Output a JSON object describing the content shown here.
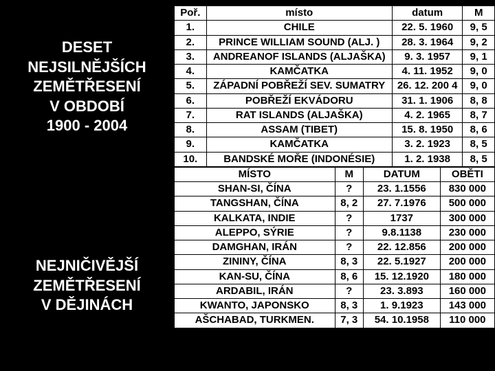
{
  "colors": {
    "background": "#000000",
    "text_on_black": "#ffffff",
    "table_bg": "#ffffff",
    "border": "#000000"
  },
  "leftTitles": {
    "first": {
      "l1": "DESET",
      "l2": "NEJSILNĚJŠÍCH",
      "l3": "ZEMĚTŘESENÍ",
      "l4": "V OBDOBÍ",
      "l5": "1900 - 2004"
    },
    "second": {
      "l1": "NEJNIČIVĚJŠÍ",
      "l2": "ZEMĚTŘESENÍ",
      "l3": "V DĚJINÁCH"
    }
  },
  "table1": {
    "headers": {
      "por": "Poř.",
      "misto": "místo",
      "datum": "datum",
      "m": "M"
    },
    "rows": [
      {
        "n": "1.",
        "place": "CHILE",
        "date": "22. 5. 1960",
        "m": "9, 5"
      },
      {
        "n": "2.",
        "place": "PRINCE WILLIAM SOUND (ALJ. )",
        "date": "28. 3. 1964",
        "m": "9, 2"
      },
      {
        "n": "3.",
        "place": "ANDREANOF ISLANDS (ALJAŠKA)",
        "date": "9. 3. 1957",
        "m": "9, 1"
      },
      {
        "n": "4.",
        "place": "KAMČATKA",
        "date": "4. 11. 1952",
        "m": "9, 0"
      },
      {
        "n": "5.",
        "place": "ZÁPADNÍ POBŘEŽÍ SEV. SUMATRY",
        "date": "26. 12. 200 4",
        "m": "9, 0"
      },
      {
        "n": "6.",
        "place": "POBŘEŽÍ EKVÁDORU",
        "date": "31. 1. 1906",
        "m": "8, 8"
      },
      {
        "n": "7.",
        "place": "RAT ISLANDS (ALJAŠKA)",
        "date": "4. 2. 1965",
        "m": "8, 7"
      },
      {
        "n": "8.",
        "place": "ASSAM (TIBET)",
        "date": "15. 8. 1950",
        "m": "8, 6"
      },
      {
        "n": "9.",
        "place": "KAMČATKA",
        "date": "3. 2. 1923",
        "m": "8, 5"
      },
      {
        "n": "10.",
        "place": "BANDSKÉ MOŘE (INDONÉSIE)",
        "date": "1. 2. 1938",
        "m": "8, 5"
      }
    ]
  },
  "table2": {
    "headers": {
      "misto": "MÍSTO",
      "m": "M",
      "datum": "DATUM",
      "obeti": "OBĚTI"
    },
    "rows": [
      {
        "place": "SHAN-SI, ČÍNA",
        "m": "?",
        "date": "23. 1.1556",
        "v": "830 000"
      },
      {
        "place": "TANGSHAN, ČÍNA",
        "m": "8, 2",
        "date": "27. 7.1976",
        "v": "500 000"
      },
      {
        "place": "KALKATA, INDIE",
        "m": "?",
        "date": "1737",
        "v": "300 000"
      },
      {
        "place": "ALEPPO, SÝRIE",
        "m": "?",
        "date": "9.8.1138",
        "v": "230 000"
      },
      {
        "place": "DAMGHAN, IRÁN",
        "m": "?",
        "date": "22. 12.856",
        "v": "200 000"
      },
      {
        "place": "ZININY, ČÍNA",
        "m": "8, 3",
        "date": "22. 5.1927",
        "v": "200 000"
      },
      {
        "place": "KAN-SU, ČÍNA",
        "m": "8, 6",
        "date": "15. 12.1920",
        "v": "180 000"
      },
      {
        "place": "ARDABIL, IRÁN",
        "m": "?",
        "date": "23. 3.893",
        "v": "160 000"
      },
      {
        "place": "KWANTO, JAPONSKO",
        "m": "8, 3",
        "date": "1. 9.1923",
        "v": "143 000"
      },
      {
        "place": "AŠCHABAD, TURKMEN.",
        "m": "7, 3",
        "date": "54. 10.1958",
        "v": "110 000"
      }
    ]
  }
}
